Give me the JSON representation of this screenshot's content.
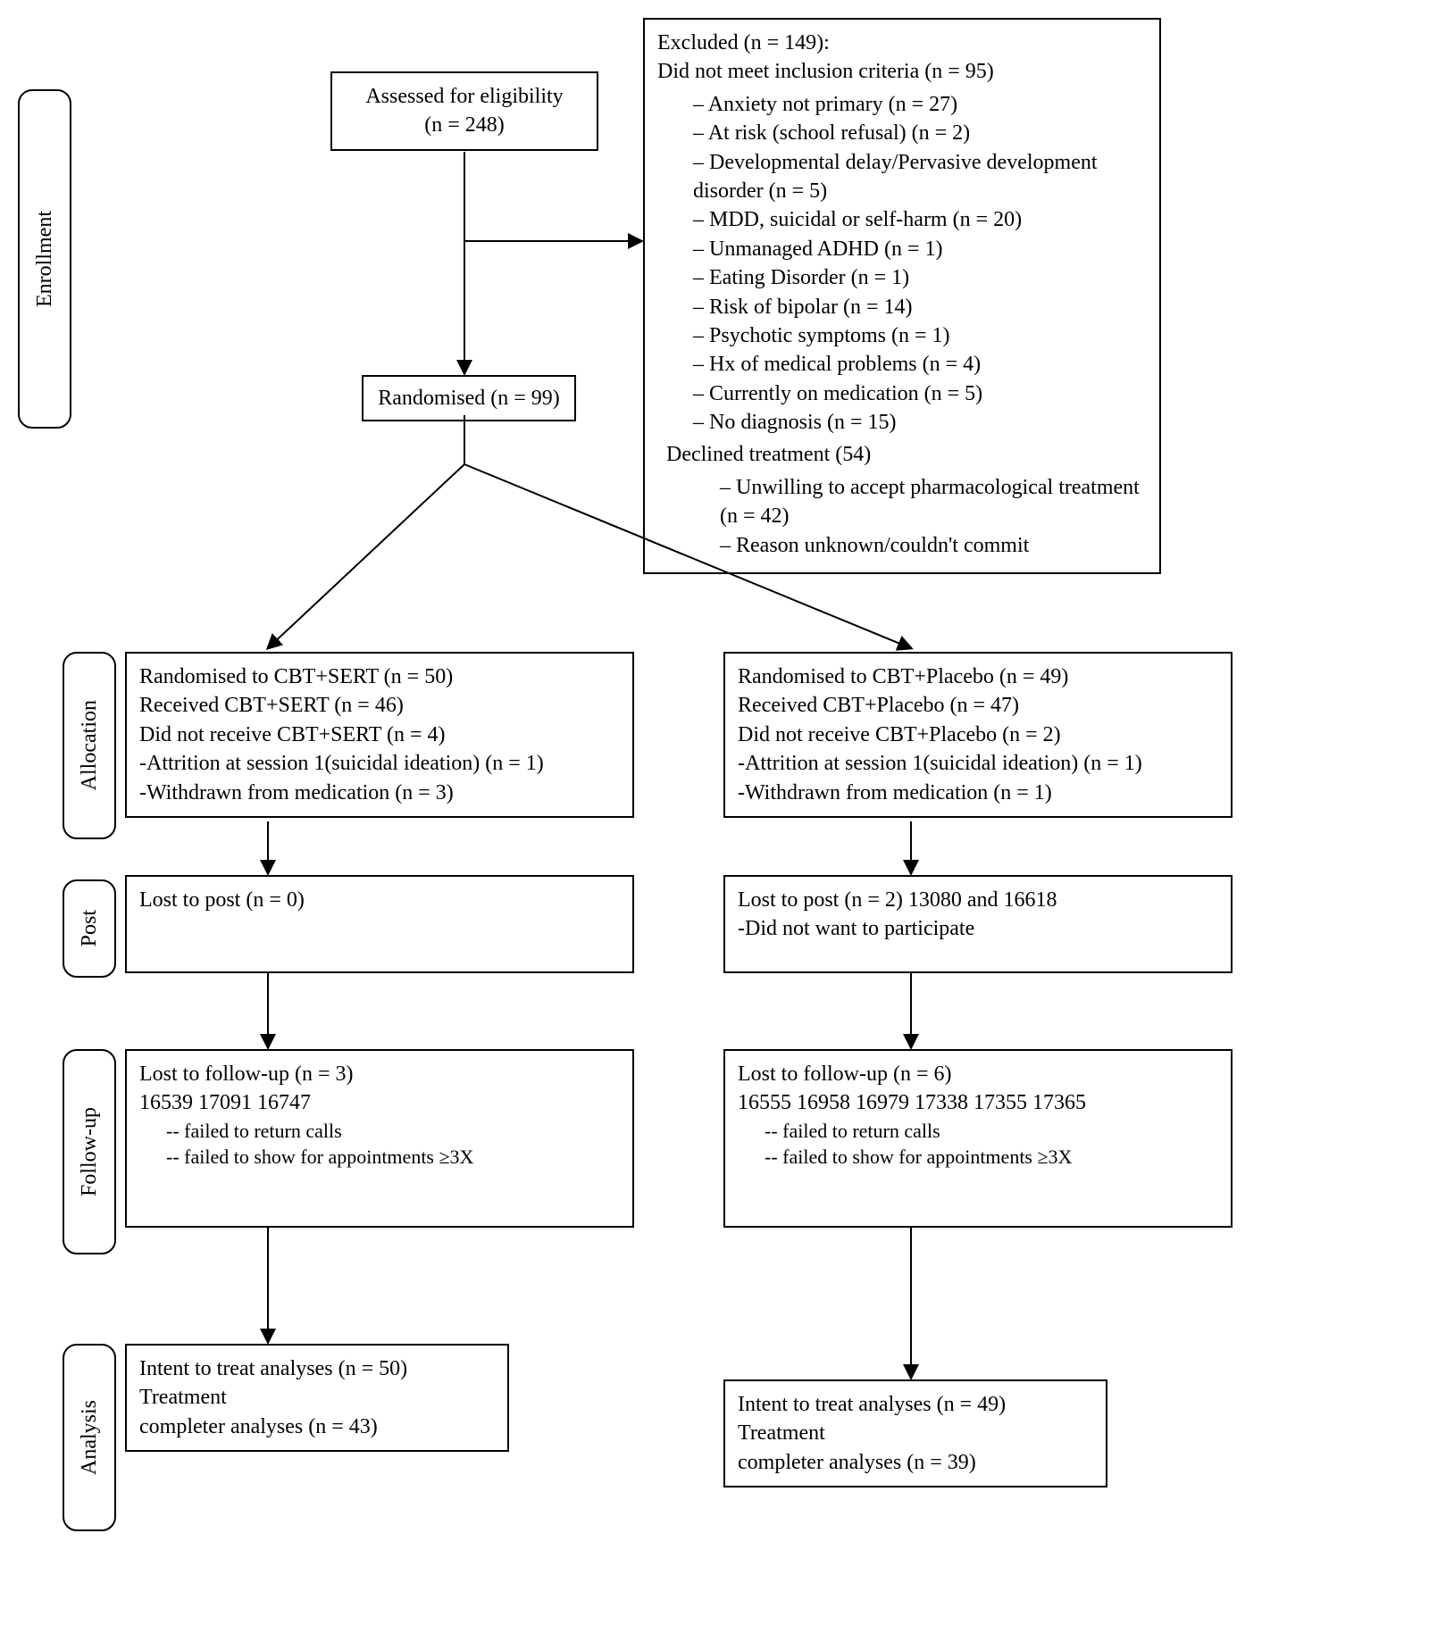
{
  "diagram": {
    "type": "flowchart",
    "background_color": "#ffffff",
    "border_color": "#000000",
    "text_color": "#000000",
    "line_width": 2,
    "font_family": "Times New Roman",
    "base_fontsize": 24,
    "phases": {
      "enrollment": "Enrollment",
      "allocation": "Allocation",
      "post": "Post",
      "followup": "Follow-up",
      "analysis": "Analysis"
    },
    "eligibility": {
      "line1": "Assessed for eligibility",
      "line2": "(n = 248)"
    },
    "excluded": {
      "header1": "Excluded (n = 149):",
      "header2": "Did not meet inclusion criteria (n = 95)",
      "criteria": [
        "Anxiety not primary (n = 27)",
        "At risk (school refusal) (n = 2)",
        "Developmental delay/Pervasive development disorder (n = 5)",
        "MDD, suicidal or self-harm (n = 20)",
        "Unmanaged ADHD (n = 1)",
        "Eating Disorder (n = 1)",
        "Risk of bipolar (n = 14)",
        "Psychotic symptoms (n = 1)",
        "Hx of medical problems (n = 4)",
        "Currently on medication (n = 5)",
        "No diagnosis (n = 15)"
      ],
      "declined_header": "Declined treatment (54)",
      "declined": [
        "Unwilling to accept pharmacological treatment (n = 42)",
        "Reason unknown/couldn't commit"
      ]
    },
    "randomised": "Randomised (n = 99)",
    "arm_left": {
      "allocation": {
        "l1": "Randomised to CBT+SERT (n = 50)",
        "l2": "Received CBT+SERT (n = 46)",
        "l3": "Did not receive CBT+SERT (n = 4)",
        "l4": "-Attrition at session 1(suicidal ideation) (n = 1)",
        "l5": "-Withdrawn from medication (n = 3)"
      },
      "post": "Lost to post (n = 0)",
      "followup": {
        "l1": "Lost to follow-up (n = 3)",
        "l2": "16539 17091 16747",
        "s1": "-- failed to return calls",
        "s2": "-- failed to show for appointments ≥3X"
      },
      "analysis": {
        "l1": "Intent to treat analyses (n = 50)",
        "l2": "Treatment",
        "l3": "completer analyses (n = 43)"
      }
    },
    "arm_right": {
      "allocation": {
        "l1": "Randomised to CBT+Placebo (n = 49)",
        "l2": "Received CBT+Placebo (n = 47)",
        "l3": "Did not receive CBT+Placebo (n = 2)",
        "l4": "-Attrition at session 1(suicidal ideation) (n = 1)",
        "l5": "-Withdrawn from medication (n = 1)"
      },
      "post": {
        "l1": "Lost to post (n = 2) 13080 and 16618",
        "l2": "-Did not want to participate"
      },
      "followup": {
        "l1": "Lost to follow-up (n = 6)",
        "l2": "16555 16958 16979 17338 17355 17365",
        "s1": "-- failed to return calls",
        "s2": "-- failed to show for appointments ≥3X"
      },
      "analysis": {
        "l1": "Intent to treat analyses (n = 49)",
        "l2": "Treatment",
        "l3": "completer analyses (n = 39)"
      }
    }
  }
}
